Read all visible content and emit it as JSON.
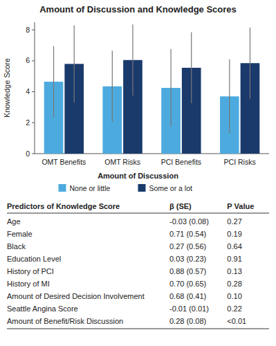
{
  "chart_data": [
    {
      "type": "bar",
      "title": "Amount of Discussion and Knowledge Scores",
      "xlabel": "Amount of Discussion",
      "ylabel": "Knowledge Score",
      "categories": [
        "OMT Benefits",
        "OMT Risks",
        "PCI Benefits",
        "PCI Risks"
      ],
      "series": [
        {
          "name": "None or little",
          "color": "#4DAADF",
          "values": [
            4.65,
            4.35,
            4.25,
            3.7
          ],
          "errors": [
            2.3,
            2.3,
            2.5,
            2.4
          ]
        },
        {
          "name": "Some or a lot",
          "color": "#1A3A6B",
          "values": [
            5.8,
            6.05,
            5.55,
            5.85
          ],
          "errors": [
            2.5,
            2.3,
            2.3,
            2.3
          ]
        }
      ],
      "ylim": [
        0,
        8.5
      ],
      "yticks": [
        0,
        2,
        4,
        6,
        8
      ],
      "grid": false,
      "legend": "bottom"
    },
    {
      "type": "table",
      "columns": [
        "Predictors of Knowledge Score",
        "β (SE)",
        "P Value"
      ],
      "rows": [
        [
          "Age",
          "-0.03 (0.08)",
          "0.27"
        ],
        [
          "Female",
          "0.71 (0.54)",
          "0.19"
        ],
        [
          "Black",
          "0.27 (0.56)",
          "0.64"
        ],
        [
          "Education Level",
          "0.03 (0.23)",
          "0.91"
        ],
        [
          "History of PCI",
          "0.88 (0.57)",
          "0.13"
        ],
        [
          "History of MI",
          "0.70 (0.65)",
          "0.28"
        ],
        [
          "Amount of Desired Decision Involvement",
          "0.68 (0.41)",
          "0.10"
        ],
        [
          "Seattle Angina Score",
          "-0.01 (0.01)",
          "0.22"
        ],
        [
          "Amount of Benefit/Risk Discussion",
          "0.28 (0.08)",
          "<0.01"
        ]
      ]
    }
  ]
}
